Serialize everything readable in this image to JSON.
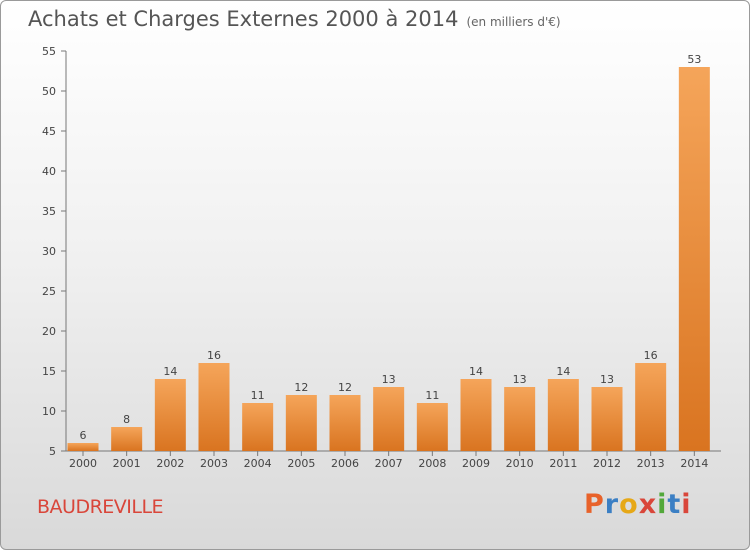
{
  "chart_data": {
    "type": "bar",
    "title": "Achats et Charges Externes 2000 à 2014",
    "unit_note": "(en milliers d'€)",
    "categories": [
      "2000",
      "2001",
      "2002",
      "2003",
      "2004",
      "2005",
      "2006",
      "2007",
      "2008",
      "2009",
      "2010",
      "2011",
      "2012",
      "2013",
      "2014"
    ],
    "values": [
      6,
      8,
      14,
      16,
      11,
      12,
      12,
      13,
      11,
      14,
      13,
      14,
      13,
      16,
      53
    ],
    "ylim": [
      5,
      55
    ],
    "yticks": [
      5,
      10,
      15,
      20,
      25,
      30,
      35,
      40,
      45,
      50,
      55
    ],
    "grid": false,
    "bar_color_light": "#f5a55a",
    "bar_color_dark": "#d97420"
  },
  "footer": {
    "commune": "BAUDREVILLE",
    "logo_letters": [
      "P",
      "r",
      "o",
      "x",
      "i",
      "t",
      "i"
    ]
  }
}
